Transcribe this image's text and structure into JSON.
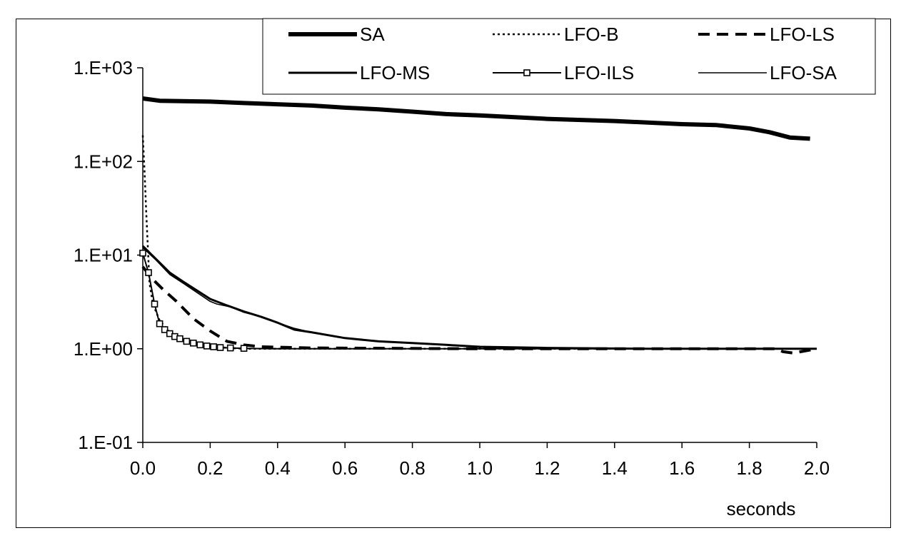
{
  "chart_data": {
    "type": "line",
    "title": "",
    "xlabel": "seconds",
    "ylabel": "",
    "xlim": [
      0.0,
      2.0
    ],
    "ylim": [
      0.1,
      1000
    ],
    "yscale": "log",
    "grid": false,
    "legend_position": "top-right",
    "x_ticks": [
      "0.0",
      "0.2",
      "0.4",
      "0.6",
      "0.8",
      "1.0",
      "1.2",
      "1.4",
      "1.6",
      "1.8",
      "2.0"
    ],
    "y_ticks": [
      "1.E-01",
      "1.E+00",
      "1.E+01",
      "1.E+02",
      "1.E+03"
    ],
    "series": [
      {
        "name": "SA",
        "style": "thick-solid",
        "color": "#000000",
        "x": [
          0.0,
          0.05,
          0.2,
          0.3,
          0.5,
          0.6,
          0.7,
          0.8,
          0.9,
          1.0,
          1.2,
          1.4,
          1.6,
          1.7,
          1.8,
          1.86,
          1.92,
          1.98
        ],
        "y": [
          470,
          445,
          435,
          420,
          395,
          375,
          360,
          340,
          320,
          310,
          285,
          270,
          250,
          245,
          225,
          205,
          180,
          175
        ]
      },
      {
        "name": "LFO-B",
        "style": "dotted",
        "color": "#000000",
        "x": [
          0.0,
          0.005,
          0.01,
          0.015,
          0.02,
          0.03,
          0.05,
          0.08,
          0.12,
          0.2,
          0.3,
          0.5,
          1.0,
          2.0
        ],
        "y": [
          190,
          80,
          30,
          12,
          5,
          3,
          2,
          1.5,
          1.2,
          1.05,
          1.0,
          1.0,
          1.0,
          1.0
        ]
      },
      {
        "name": "LFO-LS",
        "style": "dashed",
        "color": "#000000",
        "x": [
          0.0,
          0.03,
          0.06,
          0.1,
          0.15,
          0.2,
          0.25,
          0.3,
          0.35,
          0.5,
          1.0,
          1.5,
          1.88,
          1.9,
          1.93,
          2.0
        ],
        "y": [
          7.5,
          5.5,
          4.3,
          3.2,
          2.1,
          1.55,
          1.2,
          1.1,
          1.05,
          1.02,
          1.0,
          1.0,
          1.0,
          0.93,
          0.9,
          1.0
        ]
      },
      {
        "name": "LFO-MS",
        "style": "solid",
        "color": "#000000",
        "x": [
          0.0,
          0.04,
          0.08,
          0.12,
          0.16,
          0.2,
          0.25,
          0.3,
          0.35,
          0.4,
          0.45,
          0.5,
          0.6,
          0.7,
          0.8,
          0.9,
          1.0,
          1.2,
          1.5,
          2.0
        ],
        "y": [
          12.5,
          9.0,
          6.5,
          5.2,
          4.2,
          3.4,
          2.9,
          2.5,
          2.2,
          1.9,
          1.6,
          1.5,
          1.3,
          1.2,
          1.15,
          1.1,
          1.05,
          1.02,
          1.0,
          1.0
        ]
      },
      {
        "name": "LFO-ILS",
        "style": "solid-square-markers",
        "color": "#000000",
        "x": [
          0.0,
          0.017,
          0.035,
          0.05,
          0.065,
          0.08,
          0.095,
          0.11,
          0.13,
          0.15,
          0.17,
          0.19,
          0.21,
          0.23,
          0.26,
          0.3,
          0.4,
          0.6,
          0.8,
          1.0,
          2.0
        ],
        "y": [
          10.5,
          6.5,
          3.0,
          1.85,
          1.6,
          1.45,
          1.35,
          1.28,
          1.2,
          1.15,
          1.1,
          1.07,
          1.05,
          1.03,
          1.02,
          1.01,
          1.0,
          1.0,
          1.0,
          1.0,
          1.0
        ]
      },
      {
        "name": "LFO-SA",
        "style": "thin-solid",
        "color": "#000000",
        "x": [
          0.0,
          0.04,
          0.08,
          0.12,
          0.16,
          0.2,
          0.22,
          0.26,
          0.3,
          0.35,
          0.4,
          0.45,
          0.5,
          0.6,
          0.7,
          0.8,
          0.9,
          1.0,
          1.2,
          1.5,
          2.0
        ],
        "y": [
          12.0,
          8.8,
          6.2,
          5.0,
          4.0,
          3.2,
          3.0,
          2.8,
          2.45,
          2.2,
          1.9,
          1.65,
          1.5,
          1.3,
          1.2,
          1.15,
          1.1,
          1.05,
          1.02,
          1.0,
          1.0
        ]
      }
    ]
  }
}
